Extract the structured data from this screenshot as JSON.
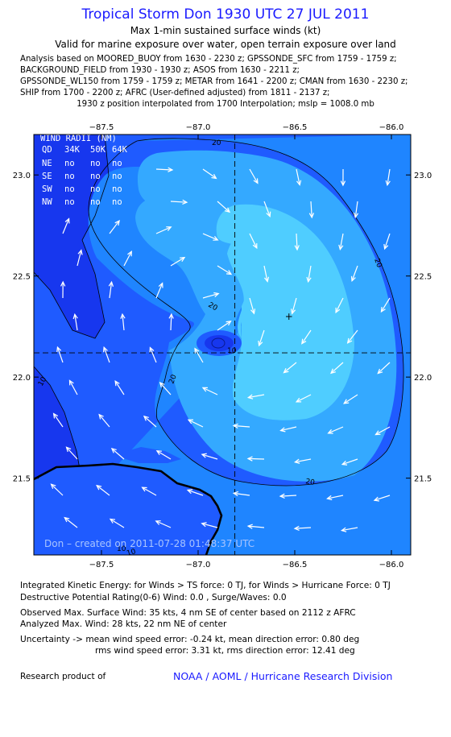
{
  "header": {
    "title": "Tropical Storm Don 1930 UTC 27 JUL 2011",
    "subtitle1": "Max 1-min sustained surface winds (kt)",
    "subtitle2": "Valid for marine exposure over water, open terrain exposure over land",
    "analysis_lines": [
      "Analysis based on MOORED_BUOY from 1630 - 2230 z; GPSSONDE_SFC from 1759 - 1759 z;",
      "BACKGROUND_FIELD from 1930 - 1930 z; ASOS from 1630 - 2211 z;",
      "GPSSONDE_WL150 from 1759 - 1759 z; METAR from 1641 - 2200 z; CMAN from 1630 - 2230 z;",
      "SHIP from 1700 - 2200 z; AFRC (User-defined adjusted) from 1811 - 2137 z;"
    ],
    "position_line": "1930 z position interpolated from 1700 Interpolation; mslp = 1008.0 mb"
  },
  "chart_data": {
    "type": "contour_map",
    "xaxis": {
      "ticks": [
        -87.5,
        -87.0,
        -86.5,
        -86.0
      ],
      "tick_labels": [
        "−87.5",
        "−87.0",
        "−86.5",
        "−86.0"
      ],
      "range": [
        -87.85,
        -85.9
      ]
    },
    "yaxis": {
      "ticks": [
        21.5,
        22.0,
        22.5,
        23.0
      ],
      "tick_labels": [
        "21.5",
        "22.0",
        "22.5",
        "23.0"
      ],
      "range": [
        21.12,
        23.2
      ]
    },
    "contour_labels": [
      "10",
      "10",
      "20",
      "20",
      "20",
      "20",
      "20",
      "10",
      "10"
    ],
    "center": {
      "lon": -86.81,
      "lat": 22.12
    },
    "max_wind_marker": {
      "lon": -86.53,
      "lat": 22.3
    },
    "colors": {
      "frame": "#000000",
      "level_0": "#1737ee",
      "level_1": "#1f5bff",
      "level_2": "#1f85ff",
      "level_3": "#34a9ff",
      "level_4": "#4fcdff",
      "arrow": "#ffffff",
      "land": "#000000",
      "credit_text": "#a8c4ff"
    },
    "wind_radii_table": {
      "title": "WIND RADII (NM)",
      "headers": [
        "QD",
        "34K",
        "50K",
        "64K"
      ],
      "rows": [
        [
          "NE",
          "no",
          "no",
          "no"
        ],
        [
          "SE",
          "no",
          "no",
          "no"
        ],
        [
          "SW",
          "no",
          "no",
          "no"
        ],
        [
          "NW",
          "no",
          "no",
          "no"
        ]
      ]
    },
    "credit": "Don – created on 2011-07-28 01:48:37 UTC"
  },
  "footer": {
    "ike": "Integrated Kinetic Energy:  for Winds > TS force: 0 TJ,  for Winds > Hurricane Force: 0 TJ",
    "dpr": "Destructive Potential Rating(0-6)   Wind: 0.0 , Surge/Waves: 0.0",
    "observed": "Observed Max. Surface Wind: 35 kts, 4 nm SE of center based on 2112 z AFRC",
    "analyzed": "Analyzed Max. Wind: 28 kts, 22 nm NE of center",
    "uncertainty1": "Uncertainty -> mean wind speed error:  -0.24 kt,   mean direction error: 0.80 deg",
    "uncertainty2": "rms wind speed error: 3.31 kt,   rms direction error: 12.41 deg",
    "research": "Research product of",
    "noaa": "NOAA / AOML / Hurricane Research Division"
  }
}
